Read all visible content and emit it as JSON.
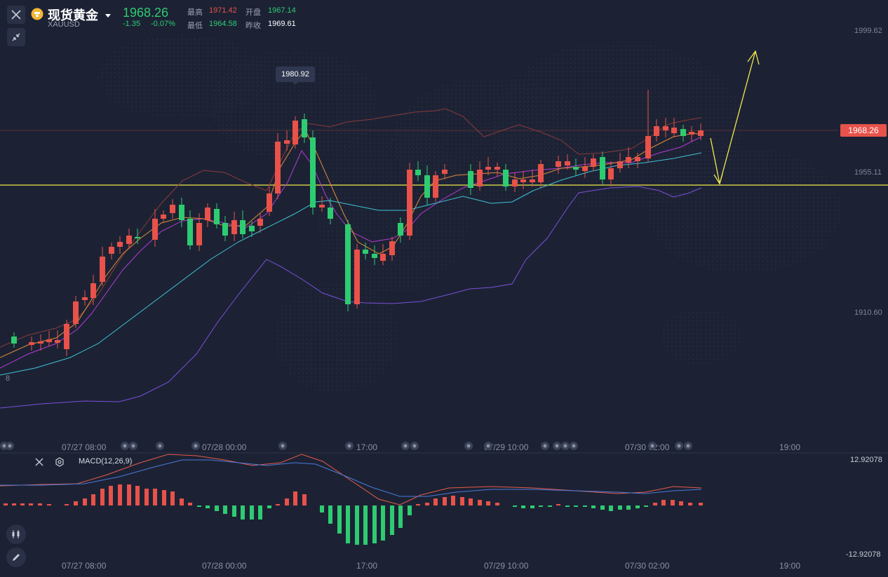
{
  "header": {
    "name": "现货黄金",
    "code": "XAUUSD",
    "price": "1968.26",
    "change": "-1.35",
    "change_pct": "-0.07%",
    "high_label": "最高",
    "high_value": "1971.42",
    "open_label": "开盘",
    "open_value": "1967.14",
    "low_label": "最低",
    "low_value": "1964.58",
    "prev_close_label": "昨收",
    "prev_close_value": "1969.61"
  },
  "price_axis": {
    "top": "1999.62",
    "mid": "1955.11",
    "low": "1910.60",
    "current_tag": "1968.26",
    "left_partial": "8"
  },
  "tooltip": {
    "max_price": "1980.92"
  },
  "time_axis": [
    "07/27 08:00",
    "07/28 00:00",
    "17:00",
    "07/29 10:00",
    "07/30 02:00",
    "19:00"
  ],
  "macd": {
    "label": "MACD(12,26,9)",
    "top_value": "12.92078",
    "bottom_value": "-12.92078"
  },
  "colors": {
    "background": "#1c2234",
    "up": "#e8524a",
    "down": "#2ecc71",
    "annotation": "#f2e84a",
    "upper_band": "#8a3a3a",
    "lower_band": "#7b4fd9",
    "ma_cyan": "#3fc3d6"
  },
  "icons": {
    "close": "close-icon",
    "collapse": "collapse-arrows-icon",
    "coin": "gold-coin-icon",
    "dropdown": "caret-down-icon",
    "settings": "gear-icon",
    "candles": "candlestick-icon",
    "pen": "pen-icon"
  }
}
